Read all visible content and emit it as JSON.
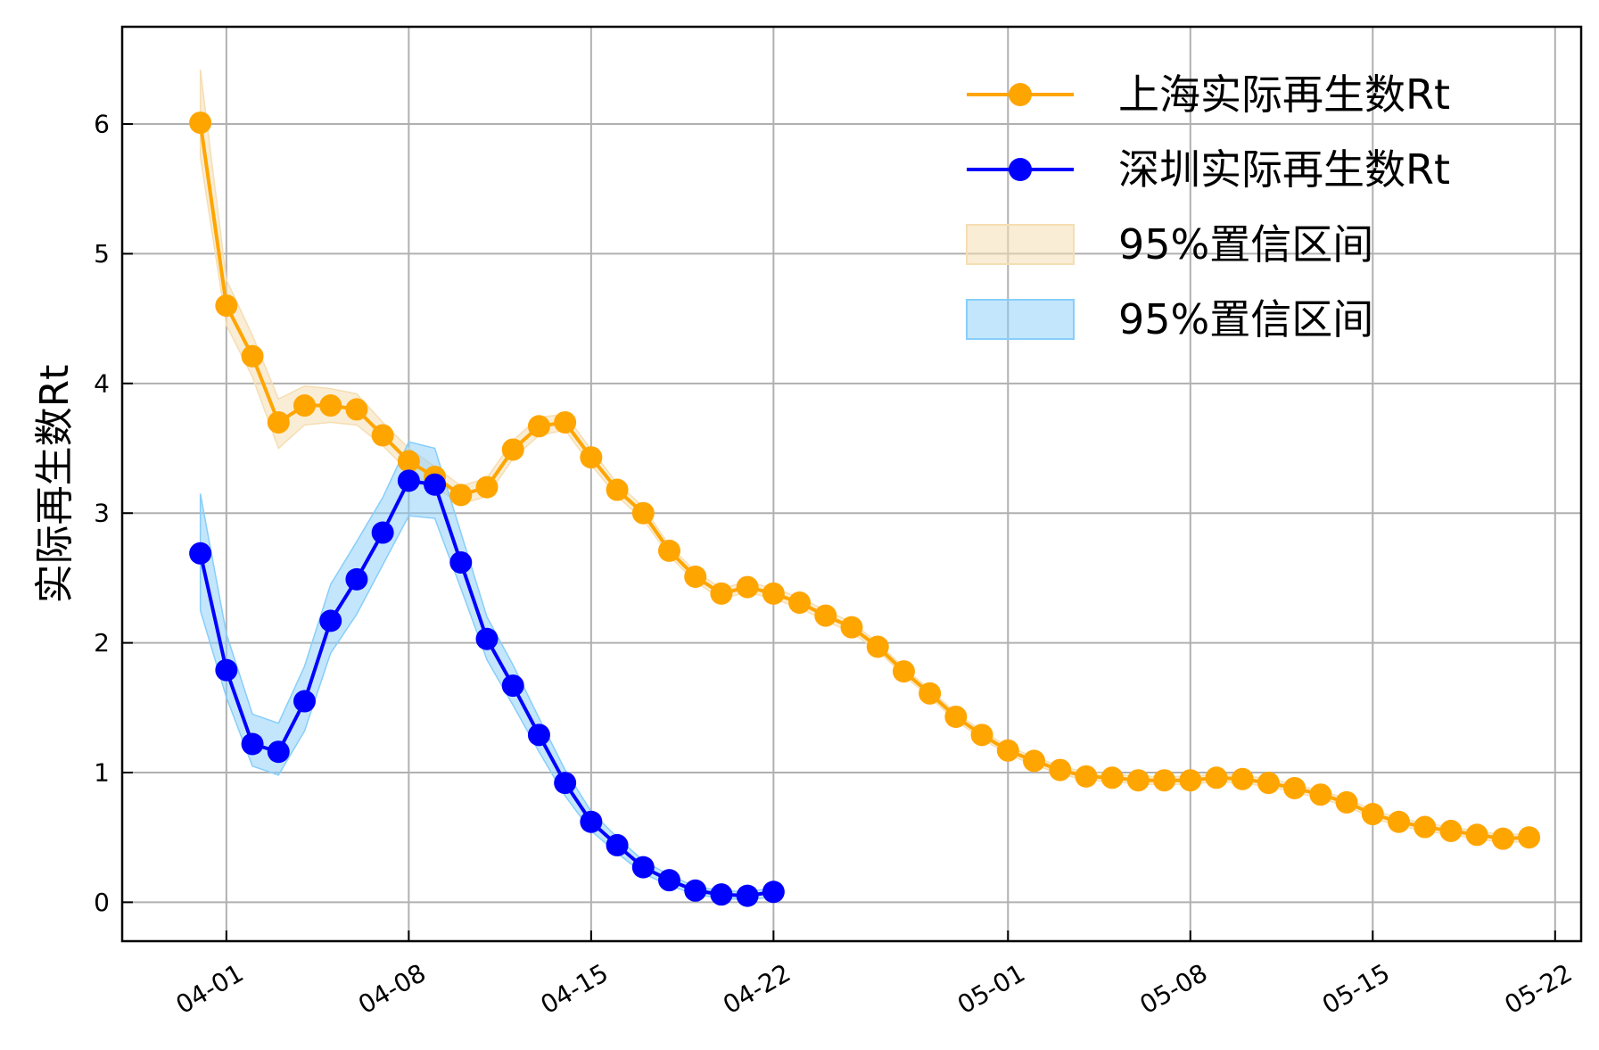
{
  "chart_data": {
    "type": "line",
    "title": "",
    "xlabel": "",
    "ylabel": "实际再生数Rt",
    "x_start": "2022-03-31",
    "xlim": [
      "2022-03-28",
      "2022-05-23"
    ],
    "ylim": [
      -0.3,
      6.75
    ],
    "yticks": [
      0,
      1,
      2,
      3,
      4,
      5,
      6
    ],
    "xticks": [
      {
        "date": "2022-04-01",
        "label": "04-01"
      },
      {
        "date": "2022-04-08",
        "label": "04-08"
      },
      {
        "date": "2022-04-15",
        "label": "04-15"
      },
      {
        "date": "2022-04-22",
        "label": "04-22"
      },
      {
        "date": "2022-05-01",
        "label": "05-01"
      },
      {
        "date": "2022-05-08",
        "label": "05-08"
      },
      {
        "date": "2022-05-15",
        "label": "05-15"
      },
      {
        "date": "2022-05-22",
        "label": "05-22"
      }
    ],
    "grid": true,
    "legend_position": "top-right",
    "series": [
      {
        "name": "上海实际再生数Rt",
        "color": "#FFA500",
        "start": "2022-03-31",
        "values": [
          6.01,
          4.6,
          4.21,
          3.7,
          3.83,
          3.83,
          3.8,
          3.6,
          3.4,
          3.28,
          3.14,
          3.2,
          3.49,
          3.67,
          3.7,
          3.43,
          3.18,
          3.0,
          2.71,
          2.51,
          2.38,
          2.43,
          2.38,
          2.31,
          2.21,
          2.12,
          1.97,
          1.78,
          1.61,
          1.43,
          1.29,
          1.17,
          1.09,
          1.02,
          0.97,
          0.96,
          0.94,
          0.94,
          0.94,
          0.96,
          0.95,
          0.92,
          0.88,
          0.83,
          0.77,
          0.68,
          0.62,
          0.58,
          0.55,
          0.52,
          0.49,
          0.5
        ],
        "ci_lower": [
          5.75,
          4.45,
          4.05,
          3.5,
          3.68,
          3.7,
          3.68,
          3.52,
          3.32,
          3.2,
          3.07,
          3.13,
          3.42,
          3.6,
          3.64,
          3.37,
          3.13,
          2.95,
          2.67,
          2.47,
          2.34,
          2.39,
          2.34,
          2.27,
          2.17,
          2.08,
          1.94,
          1.75,
          1.58,
          1.4,
          1.26,
          1.14,
          1.06,
          0.99,
          0.94,
          0.93,
          0.91,
          0.91,
          0.91,
          0.93,
          0.92,
          0.89,
          0.85,
          0.8,
          0.74,
          0.65,
          0.59,
          0.55,
          0.52,
          0.49,
          0.46,
          0.47
        ],
        "ci_upper": [
          6.42,
          4.8,
          4.37,
          3.88,
          3.98,
          3.96,
          3.92,
          3.7,
          3.5,
          3.36,
          3.21,
          3.27,
          3.56,
          3.74,
          3.76,
          3.49,
          3.23,
          3.05,
          2.75,
          2.55,
          2.42,
          2.47,
          2.42,
          2.35,
          2.25,
          2.16,
          2.0,
          1.81,
          1.64,
          1.46,
          1.32,
          1.2,
          1.12,
          1.05,
          1.0,
          0.99,
          0.97,
          0.97,
          0.97,
          0.99,
          0.98,
          0.95,
          0.91,
          0.86,
          0.8,
          0.71,
          0.65,
          0.61,
          0.58,
          0.55,
          0.52,
          0.53
        ]
      },
      {
        "name": "深圳实际再生数Rt",
        "color": "#0000FF",
        "start": "2022-03-31",
        "values": [
          2.69,
          1.79,
          1.22,
          1.16,
          1.55,
          2.17,
          2.49,
          2.85,
          3.25,
          3.22,
          2.62,
          2.03,
          1.67,
          1.29,
          0.92,
          0.62,
          0.44,
          0.27,
          0.17,
          0.09,
          0.06,
          0.05,
          0.08
        ],
        "ci_lower": [
          2.25,
          1.58,
          1.05,
          0.98,
          1.32,
          1.92,
          2.22,
          2.6,
          2.98,
          2.96,
          2.42,
          1.87,
          1.52,
          1.16,
          0.82,
          0.55,
          0.38,
          0.22,
          0.13,
          0.06,
          0.03,
          0.02,
          0.04
        ],
        "ci_upper": [
          3.15,
          2.07,
          1.45,
          1.38,
          1.82,
          2.45,
          2.78,
          3.12,
          3.55,
          3.5,
          2.85,
          2.2,
          1.83,
          1.42,
          1.02,
          0.7,
          0.5,
          0.32,
          0.21,
          0.12,
          0.09,
          0.08,
          0.11
        ]
      }
    ],
    "bands": [
      {
        "label": "95%置信区间",
        "color": "#F5DEB3",
        "for": "上海实际再生数Rt"
      },
      {
        "label": "95%置信区间",
        "color": "#87CEFA",
        "for": "深圳实际再生数Rt"
      }
    ]
  }
}
